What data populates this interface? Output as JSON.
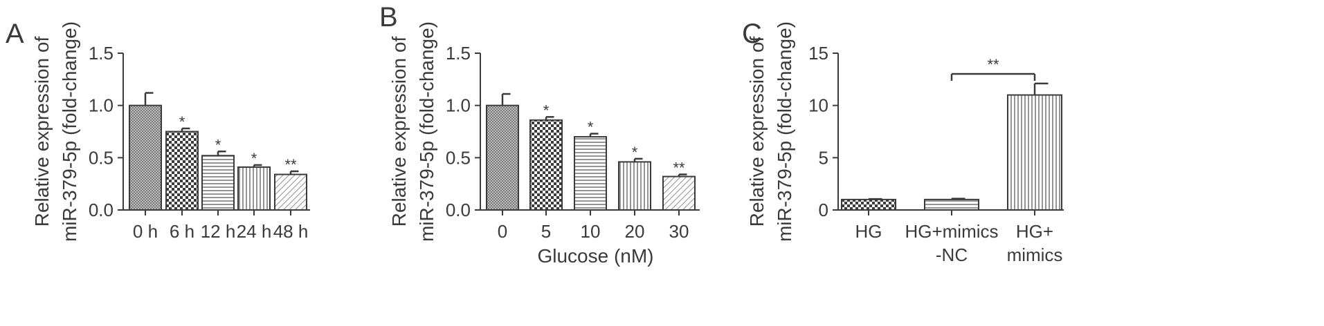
{
  "colors": {
    "ink": "#3a3a3a",
    "background": "#ffffff"
  },
  "chart_data": [
    {
      "panel": "A",
      "type": "bar",
      "ylabel": [
        "Relative expression of",
        "miR-379-5p (fold-change)"
      ],
      "xlabel": "",
      "yticks": [
        "0.0",
        "0.5",
        "1.0",
        "1.5"
      ],
      "ylim": [
        0,
        1.5
      ],
      "categories": [
        "0 h",
        "6 h",
        "12 h",
        "24 h",
        "48 h"
      ],
      "values": [
        1.0,
        0.75,
        0.52,
        0.41,
        0.34
      ],
      "errors": [
        0.12,
        0.03,
        0.04,
        0.02,
        0.03
      ],
      "significance": [
        "",
        "*",
        "*",
        "*",
        "**"
      ],
      "patterns": [
        "dense-crosshatch",
        "checker",
        "horizontal",
        "vertical",
        "diagonal"
      ]
    },
    {
      "panel": "B",
      "type": "bar",
      "ylabel": [
        "Relative expression of",
        "miR-379-5p (fold-change)"
      ],
      "xlabel": "Glucose (nM)",
      "yticks": [
        "0.0",
        "0.5",
        "1.0",
        "1.5"
      ],
      "ylim": [
        0,
        1.5
      ],
      "categories": [
        "0",
        "5",
        "10",
        "20",
        "30"
      ],
      "values": [
        1.0,
        0.86,
        0.7,
        0.46,
        0.32
      ],
      "errors": [
        0.11,
        0.03,
        0.03,
        0.03,
        0.02
      ],
      "significance": [
        "",
        "*",
        "*",
        "*",
        "**"
      ],
      "patterns": [
        "dense-crosshatch",
        "checker",
        "horizontal",
        "vertical",
        "diagonal"
      ]
    },
    {
      "panel": "C",
      "type": "bar",
      "ylabel": [
        "Relative expression of",
        "miR-379-5p (fold-change)"
      ],
      "xlabel": "",
      "yticks": [
        "0",
        "5",
        "10",
        "15"
      ],
      "ylim": [
        0,
        15
      ],
      "categories": [
        [
          "HG"
        ],
        [
          "HG+mimics",
          "-NC"
        ],
        [
          "HG+",
          "mimics"
        ]
      ],
      "values": [
        1.0,
        1.0,
        11.0
      ],
      "errors": [
        0.05,
        0.08,
        1.1
      ],
      "significance": [
        "",
        "",
        ""
      ],
      "patterns": [
        "checker",
        "horizontal",
        "vertical"
      ],
      "bracket": {
        "from": 1,
        "to": 2,
        "label": "**"
      }
    }
  ]
}
